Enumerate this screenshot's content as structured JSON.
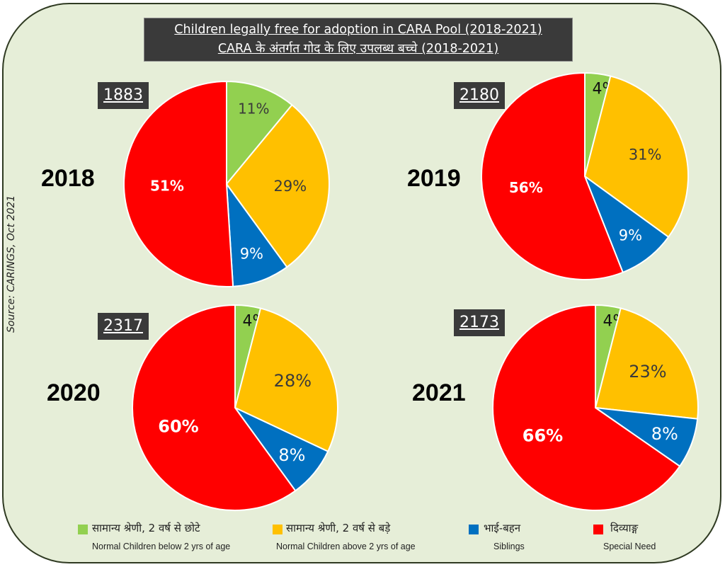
{
  "title": {
    "line1": "Children legally free for adoption in CARA Pool (2018-2021)",
    "line2": "CARA के अंतर्गत गोद के लिए उपलब्ध बच्चे (2018-2021)"
  },
  "source": "Source: CARINGS, Oct 2021",
  "colors": {
    "green": "#92d050",
    "orange": "#ffc000",
    "blue": "#0070c0",
    "red": "#ff0000"
  },
  "chart_data": [
    {
      "type": "pie",
      "year": "2018",
      "total": "1883",
      "slices": [
        {
          "name": "Normal Children below 2 yrs of age",
          "value": 11,
          "label": "11%"
        },
        {
          "name": "Normal Children above 2 yrs of age",
          "value": 29,
          "label": "29%"
        },
        {
          "name": "Siblings",
          "value": 9,
          "label": "9%"
        },
        {
          "name": "Special Need",
          "value": 51,
          "label": "51%"
        }
      ]
    },
    {
      "type": "pie",
      "year": "2019",
      "total": "2180",
      "slices": [
        {
          "name": "Normal Children below 2 yrs of age",
          "value": 4,
          "label": "4%"
        },
        {
          "name": "Normal Children above 2 yrs of age",
          "value": 31,
          "label": "31%"
        },
        {
          "name": "Siblings",
          "value": 9,
          "label": "9%"
        },
        {
          "name": "Special Need",
          "value": 56,
          "label": "56%"
        }
      ]
    },
    {
      "type": "pie",
      "year": "2020",
      "total": "2317",
      "slices": [
        {
          "name": "Normal Children below 2 yrs of age",
          "value": 4,
          "label": "4%"
        },
        {
          "name": "Normal Children above 2 yrs of age",
          "value": 28,
          "label": "28%"
        },
        {
          "name": "Siblings",
          "value": 8,
          "label": "8%"
        },
        {
          "name": "Special Need",
          "value": 60,
          "label": "60%"
        }
      ]
    },
    {
      "type": "pie",
      "year": "2021",
      "total": "2173",
      "slices": [
        {
          "name": "Normal Children below 2 yrs of age",
          "value": 4,
          "label": "4%"
        },
        {
          "name": "Normal Children above 2 yrs of age",
          "value": 23,
          "label": "23%"
        },
        {
          "name": "Siblings",
          "value": 8,
          "label": "8%"
        },
        {
          "name": "Special Need",
          "value": 66,
          "label": "66%"
        }
      ]
    }
  ],
  "legend": [
    {
      "hindi": "सामान्य श्रेणी, 2 वर्ष से छोटे",
      "english": "Normal Children below 2 yrs of age",
      "color": "#92d050"
    },
    {
      "hindi": "सामान्य श्रेणी, 2 वर्ष से बड़े",
      "english": "Normal Children above 2 yrs of age",
      "color": "#ffc000"
    },
    {
      "hindi": "भाई-बहन",
      "english": "Siblings",
      "color": "#0070c0"
    },
    {
      "hindi": "दिव्याङ्ग",
      "english": "Special Need",
      "color": "#ff0000"
    }
  ]
}
